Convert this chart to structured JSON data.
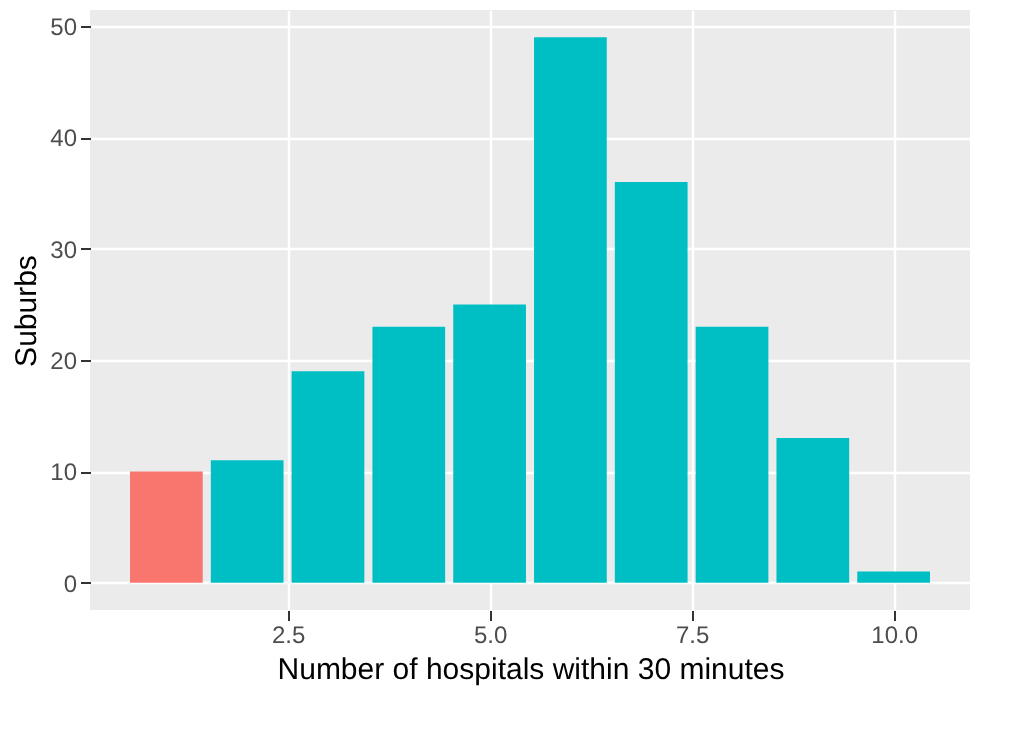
{
  "chart_data": {
    "type": "bar",
    "x": [
      1,
      2,
      3,
      4,
      5,
      6,
      7,
      8,
      9,
      10
    ],
    "values": [
      10,
      11,
      19,
      23,
      25,
      49,
      36,
      23,
      13,
      1
    ],
    "colors": [
      "#f8766d",
      "#00bfc4",
      "#00bfc4",
      "#00bfc4",
      "#00bfc4",
      "#00bfc4",
      "#00bfc4",
      "#00bfc4",
      "#00bfc4",
      "#00bfc4"
    ],
    "xlabel": "Number of hospitals within 30 minutes",
    "ylabel": "Suburbs",
    "xlim": [
      0.055,
      10.945
    ],
    "xticks": [
      {
        "value": 2.5,
        "label": "2.5"
      },
      {
        "value": 5,
        "label": "5.0"
      },
      {
        "value": 7.5,
        "label": "7.5"
      },
      {
        "value": 10,
        "label": "10.0"
      }
    ],
    "ylim": [
      -2.45,
      51.45
    ],
    "yticks": [
      0,
      10,
      20,
      30,
      40,
      50
    ],
    "grid": true
  }
}
